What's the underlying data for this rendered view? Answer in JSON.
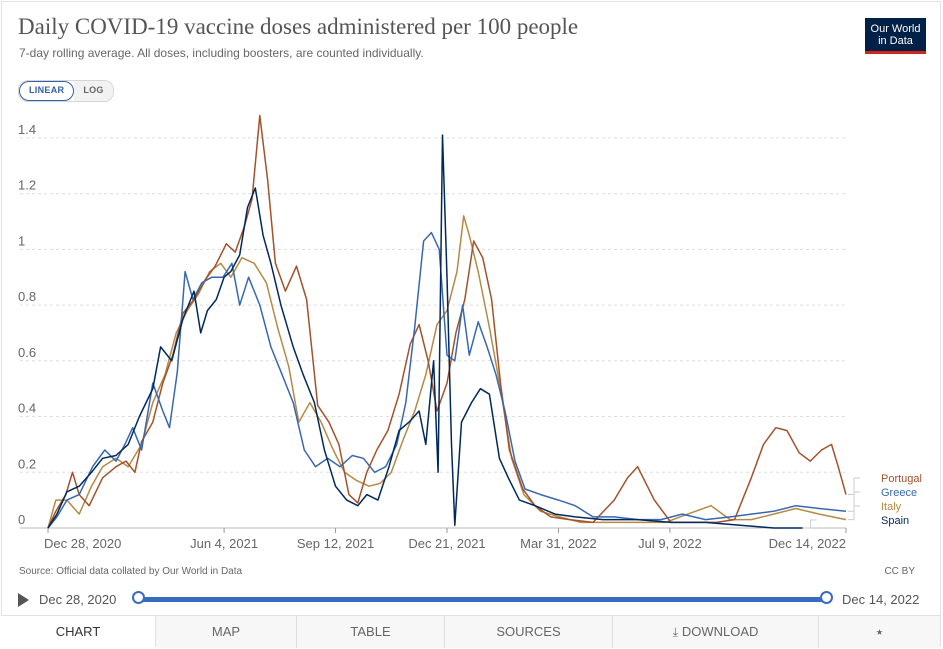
{
  "title": "Daily COVID-19 vaccine doses administered per 100 people",
  "subtitle": "7-day rolling average. All doses, including boosters, are counted individually.",
  "logo": {
    "line1": "Our World",
    "line2": "in Data",
    "bg": "#002147",
    "accent": "#ce261e"
  },
  "scale_toggle": {
    "linear": "LINEAR",
    "log": "LOG",
    "selected": "LINEAR"
  },
  "source_text": "Source: Official data collated by Our World in Data",
  "license": "CC BY",
  "timeline": {
    "start": "Dec 28, 2020",
    "end": "Dec 14, 2022",
    "play_icon": "play-icon"
  },
  "tabs": [
    {
      "label": "CHART",
      "active": true
    },
    {
      "label": "MAP",
      "active": false
    },
    {
      "label": "TABLE",
      "active": false
    },
    {
      "label": "SOURCES",
      "active": false
    },
    {
      "label": "DOWNLOAD",
      "active": false,
      "icon": "download-icon"
    },
    {
      "label": "",
      "active": false,
      "icon": "share-icon"
    }
  ],
  "chart_data": {
    "type": "line",
    "title": "Daily COVID-19 vaccine doses administered per 100 people",
    "x_axis": {
      "type": "date",
      "ticks": [
        "Dec 28, 2020",
        "Jun 4, 2021",
        "Sep 12, 2021",
        "Dec 21, 2021",
        "Mar 31, 2022",
        "Jul 9, 2022",
        "Dec 14, 2022"
      ],
      "range": [
        "2020-12-28",
        "2022-12-14"
      ]
    },
    "y_axis": {
      "ticks": [
        "0",
        "0.2",
        "0.4",
        "0.6",
        "0.8",
        "1",
        "1.2",
        "1.4"
      ],
      "range": [
        0,
        1.5
      ],
      "scale": "linear"
    },
    "grid": "horizontal dashed",
    "legend_placement": "right, end-of-line labels",
    "series": [
      {
        "name": "Portugal",
        "color": "#a2522c",
        "points": [
          [
            "2020-12-28",
            0.0
          ],
          [
            "2021-01-04",
            0.06
          ],
          [
            "2021-01-13",
            0.12
          ],
          [
            "2021-01-19",
            0.2
          ],
          [
            "2021-01-25",
            0.12
          ],
          [
            "2021-02-03",
            0.08
          ],
          [
            "2021-02-15",
            0.18
          ],
          [
            "2021-02-27",
            0.22
          ],
          [
            "2021-03-08",
            0.24
          ],
          [
            "2021-03-16",
            0.2
          ],
          [
            "2021-03-22",
            0.31
          ],
          [
            "2021-04-01",
            0.38
          ],
          [
            "2021-04-10",
            0.52
          ],
          [
            "2021-04-19",
            0.62
          ],
          [
            "2021-04-28",
            0.77
          ],
          [
            "2021-05-08",
            0.82
          ],
          [
            "2021-05-18",
            0.89
          ],
          [
            "2021-05-27",
            0.94
          ],
          [
            "2021-06-06",
            1.02
          ],
          [
            "2021-06-14",
            0.99
          ],
          [
            "2021-06-22",
            1.08
          ],
          [
            "2021-06-29",
            1.18
          ],
          [
            "2021-07-06",
            1.48
          ],
          [
            "2021-07-13",
            1.25
          ],
          [
            "2021-07-20",
            0.95
          ],
          [
            "2021-07-29",
            0.85
          ],
          [
            "2021-08-08",
            0.94
          ],
          [
            "2021-08-17",
            0.82
          ],
          [
            "2021-08-27",
            0.44
          ],
          [
            "2021-09-06",
            0.38
          ],
          [
            "2021-09-15",
            0.3
          ],
          [
            "2021-09-24",
            0.12
          ],
          [
            "2021-10-02",
            0.09
          ],
          [
            "2021-10-10",
            0.2
          ],
          [
            "2021-10-19",
            0.28
          ],
          [
            "2021-10-29",
            0.35
          ],
          [
            "2021-11-08",
            0.48
          ],
          [
            "2021-11-18",
            0.66
          ],
          [
            "2021-11-26",
            0.73
          ],
          [
            "2021-12-04",
            0.6
          ],
          [
            "2021-12-12",
            0.42
          ],
          [
            "2021-12-21",
            0.52
          ],
          [
            "2021-12-29",
            0.7
          ],
          [
            "2022-01-06",
            0.82
          ],
          [
            "2022-01-14",
            1.03
          ],
          [
            "2022-01-22",
            0.97
          ],
          [
            "2022-01-30",
            0.82
          ],
          [
            "2022-02-07",
            0.52
          ],
          [
            "2022-02-15",
            0.28
          ],
          [
            "2022-02-27",
            0.14
          ],
          [
            "2022-03-10",
            0.08
          ],
          [
            "2022-03-24",
            0.04
          ],
          [
            "2022-04-10",
            0.03
          ],
          [
            "2022-05-01",
            0.02
          ],
          [
            "2022-05-20",
            0.1
          ],
          [
            "2022-06-01",
            0.18
          ],
          [
            "2022-06-10",
            0.22
          ],
          [
            "2022-06-25",
            0.1
          ],
          [
            "2022-07-10",
            0.02
          ],
          [
            "2022-08-01",
            0.02
          ],
          [
            "2022-08-20",
            0.02
          ],
          [
            "2022-09-05",
            0.03
          ],
          [
            "2022-09-20",
            0.18
          ],
          [
            "2022-10-01",
            0.3
          ],
          [
            "2022-10-12",
            0.36
          ],
          [
            "2022-10-22",
            0.35
          ],
          [
            "2022-11-02",
            0.27
          ],
          [
            "2022-11-12",
            0.24
          ],
          [
            "2022-11-22",
            0.28
          ],
          [
            "2022-12-01",
            0.3
          ],
          [
            "2022-12-07",
            0.22
          ],
          [
            "2022-12-14",
            0.12
          ]
        ]
      },
      {
        "name": "Greece",
        "color": "#3867b0",
        "points": [
          [
            "2020-12-28",
            0.0
          ],
          [
            "2021-01-05",
            0.04
          ],
          [
            "2021-01-14",
            0.1
          ],
          [
            "2021-01-25",
            0.12
          ],
          [
            "2021-02-06",
            0.22
          ],
          [
            "2021-02-17",
            0.28
          ],
          [
            "2021-02-27",
            0.24
          ],
          [
            "2021-03-07",
            0.3
          ],
          [
            "2021-03-14",
            0.36
          ],
          [
            "2021-03-22",
            0.28
          ],
          [
            "2021-04-01",
            0.52
          ],
          [
            "2021-04-10",
            0.42
          ],
          [
            "2021-04-16",
            0.36
          ],
          [
            "2021-04-23",
            0.56
          ],
          [
            "2021-04-30",
            0.92
          ],
          [
            "2021-05-07",
            0.82
          ],
          [
            "2021-05-15",
            0.88
          ],
          [
            "2021-05-24",
            0.9
          ],
          [
            "2021-06-03",
            0.9
          ],
          [
            "2021-06-11",
            0.95
          ],
          [
            "2021-06-18",
            0.8
          ],
          [
            "2021-06-26",
            0.9
          ],
          [
            "2021-07-06",
            0.8
          ],
          [
            "2021-07-16",
            0.65
          ],
          [
            "2021-07-26",
            0.55
          ],
          [
            "2021-08-05",
            0.45
          ],
          [
            "2021-08-15",
            0.28
          ],
          [
            "2021-08-25",
            0.22
          ],
          [
            "2021-09-05",
            0.25
          ],
          [
            "2021-09-16",
            0.22
          ],
          [
            "2021-09-27",
            0.26
          ],
          [
            "2021-10-07",
            0.25
          ],
          [
            "2021-10-17",
            0.2
          ],
          [
            "2021-10-27",
            0.22
          ],
          [
            "2021-11-06",
            0.3
          ],
          [
            "2021-11-14",
            0.45
          ],
          [
            "2021-11-22",
            0.72
          ],
          [
            "2021-11-30",
            1.03
          ],
          [
            "2021-12-07",
            1.06
          ],
          [
            "2021-12-14",
            1.0
          ],
          [
            "2021-12-21",
            0.62
          ],
          [
            "2021-12-28",
            0.6
          ],
          [
            "2022-01-04",
            0.8
          ],
          [
            "2022-01-10",
            0.62
          ],
          [
            "2022-01-18",
            0.74
          ],
          [
            "2022-01-26",
            0.65
          ],
          [
            "2022-02-03",
            0.55
          ],
          [
            "2022-02-11",
            0.42
          ],
          [
            "2022-02-20",
            0.24
          ],
          [
            "2022-03-01",
            0.14
          ],
          [
            "2022-03-15",
            0.12
          ],
          [
            "2022-03-31",
            0.1
          ],
          [
            "2022-04-15",
            0.08
          ],
          [
            "2022-05-01",
            0.04
          ],
          [
            "2022-05-20",
            0.04
          ],
          [
            "2022-06-10",
            0.03
          ],
          [
            "2022-07-01",
            0.03
          ],
          [
            "2022-07-20",
            0.05
          ],
          [
            "2022-08-10",
            0.03
          ],
          [
            "2022-09-01",
            0.04
          ],
          [
            "2022-09-20",
            0.05
          ],
          [
            "2022-10-10",
            0.06
          ],
          [
            "2022-10-30",
            0.08
          ],
          [
            "2022-11-20",
            0.07
          ],
          [
            "2022-12-14",
            0.06
          ]
        ]
      },
      {
        "name": "Italy",
        "color": "#b58a44",
        "points": [
          [
            "2020-12-28",
            0.0
          ],
          [
            "2021-01-04",
            0.1
          ],
          [
            "2021-01-14",
            0.1
          ],
          [
            "2021-01-25",
            0.05
          ],
          [
            "2021-02-05",
            0.15
          ],
          [
            "2021-02-15",
            0.22
          ],
          [
            "2021-02-27",
            0.25
          ],
          [
            "2021-03-10",
            0.22
          ],
          [
            "2021-03-22",
            0.3
          ],
          [
            "2021-04-01",
            0.45
          ],
          [
            "2021-04-12",
            0.55
          ],
          [
            "2021-04-22",
            0.7
          ],
          [
            "2021-05-02",
            0.78
          ],
          [
            "2021-05-12",
            0.84
          ],
          [
            "2021-05-22",
            0.92
          ],
          [
            "2021-06-01",
            0.95
          ],
          [
            "2021-06-10",
            0.9
          ],
          [
            "2021-06-20",
            0.97
          ],
          [
            "2021-07-01",
            0.95
          ],
          [
            "2021-07-12",
            0.88
          ],
          [
            "2021-07-22",
            0.72
          ],
          [
            "2021-08-01",
            0.58
          ],
          [
            "2021-08-10",
            0.38
          ],
          [
            "2021-08-20",
            0.45
          ],
          [
            "2021-08-30",
            0.38
          ],
          [
            "2021-09-10",
            0.28
          ],
          [
            "2021-09-20",
            0.2
          ],
          [
            "2021-10-01",
            0.17
          ],
          [
            "2021-10-12",
            0.15
          ],
          [
            "2021-10-22",
            0.16
          ],
          [
            "2021-11-01",
            0.2
          ],
          [
            "2021-11-12",
            0.32
          ],
          [
            "2021-11-22",
            0.42
          ],
          [
            "2021-12-02",
            0.55
          ],
          [
            "2021-12-12",
            0.73
          ],
          [
            "2021-12-21",
            0.78
          ],
          [
            "2021-12-30",
            0.92
          ],
          [
            "2022-01-05",
            1.12
          ],
          [
            "2022-01-10",
            1.05
          ],
          [
            "2022-01-18",
            0.92
          ],
          [
            "2022-01-28",
            0.72
          ],
          [
            "2022-02-07",
            0.5
          ],
          [
            "2022-02-17",
            0.25
          ],
          [
            "2022-02-28",
            0.12
          ],
          [
            "2022-03-15",
            0.06
          ],
          [
            "2022-04-01",
            0.04
          ],
          [
            "2022-04-20",
            0.02
          ],
          [
            "2022-05-15",
            0.02
          ],
          [
            "2022-06-10",
            0.02
          ],
          [
            "2022-07-05",
            0.02
          ],
          [
            "2022-07-25",
            0.05
          ],
          [
            "2022-08-15",
            0.08
          ],
          [
            "2022-09-01",
            0.03
          ],
          [
            "2022-09-20",
            0.03
          ],
          [
            "2022-10-10",
            0.05
          ],
          [
            "2022-10-30",
            0.07
          ],
          [
            "2022-11-20",
            0.05
          ],
          [
            "2022-12-14",
            0.03
          ]
        ]
      },
      {
        "name": "Spain",
        "color": "#00295b",
        "points": [
          [
            "2020-12-28",
            0.0
          ],
          [
            "2021-01-05",
            0.05
          ],
          [
            "2021-01-14",
            0.13
          ],
          [
            "2021-01-25",
            0.15
          ],
          [
            "2021-02-05",
            0.2
          ],
          [
            "2021-02-15",
            0.25
          ],
          [
            "2021-02-27",
            0.26
          ],
          [
            "2021-03-10",
            0.3
          ],
          [
            "2021-03-20",
            0.4
          ],
          [
            "2021-04-01",
            0.5
          ],
          [
            "2021-04-08",
            0.65
          ],
          [
            "2021-04-18",
            0.6
          ],
          [
            "2021-04-28",
            0.75
          ],
          [
            "2021-05-08",
            0.85
          ],
          [
            "2021-05-14",
            0.7
          ],
          [
            "2021-05-20",
            0.78
          ],
          [
            "2021-05-28",
            0.82
          ],
          [
            "2021-06-04",
            0.9
          ],
          [
            "2021-06-10",
            0.92
          ],
          [
            "2021-06-18",
            0.98
          ],
          [
            "2021-06-25",
            1.15
          ],
          [
            "2021-07-02",
            1.22
          ],
          [
            "2021-07-09",
            1.05
          ],
          [
            "2021-07-16",
            0.95
          ],
          [
            "2021-07-25",
            0.8
          ],
          [
            "2021-08-05",
            0.65
          ],
          [
            "2021-08-14",
            0.55
          ],
          [
            "2021-08-24",
            0.45
          ],
          [
            "2021-09-02",
            0.28
          ],
          [
            "2021-09-12",
            0.15
          ],
          [
            "2021-09-22",
            0.1
          ],
          [
            "2021-10-02",
            0.08
          ],
          [
            "2021-10-10",
            0.12
          ],
          [
            "2021-10-20",
            0.1
          ],
          [
            "2021-10-30",
            0.22
          ],
          [
            "2021-11-08",
            0.35
          ],
          [
            "2021-11-17",
            0.38
          ],
          [
            "2021-11-26",
            0.42
          ],
          [
            "2021-12-02",
            0.3
          ],
          [
            "2021-12-09",
            0.6
          ],
          [
            "2021-12-13",
            0.2
          ],
          [
            "2021-12-17",
            1.41
          ],
          [
            "2021-12-21",
            0.9
          ],
          [
            "2021-12-25",
            0.3
          ],
          [
            "2021-12-28",
            0.01
          ],
          [
            "2022-01-03",
            0.38
          ],
          [
            "2022-01-12",
            0.45
          ],
          [
            "2022-01-20",
            0.5
          ],
          [
            "2022-01-28",
            0.48
          ],
          [
            "2022-02-06",
            0.25
          ],
          [
            "2022-02-14",
            0.18
          ],
          [
            "2022-02-24",
            0.1
          ],
          [
            "2022-03-10",
            0.08
          ],
          [
            "2022-03-28",
            0.05
          ],
          [
            "2022-04-15",
            0.04
          ],
          [
            "2022-05-10",
            0.03
          ],
          [
            "2022-06-10",
            0.03
          ],
          [
            "2022-07-10",
            0.02
          ],
          [
            "2022-08-10",
            0.02
          ],
          [
            "2022-09-10",
            0.01
          ],
          [
            "2022-10-10",
            0.0
          ],
          [
            "2022-11-05",
            0.0
          ]
        ]
      }
    ]
  }
}
